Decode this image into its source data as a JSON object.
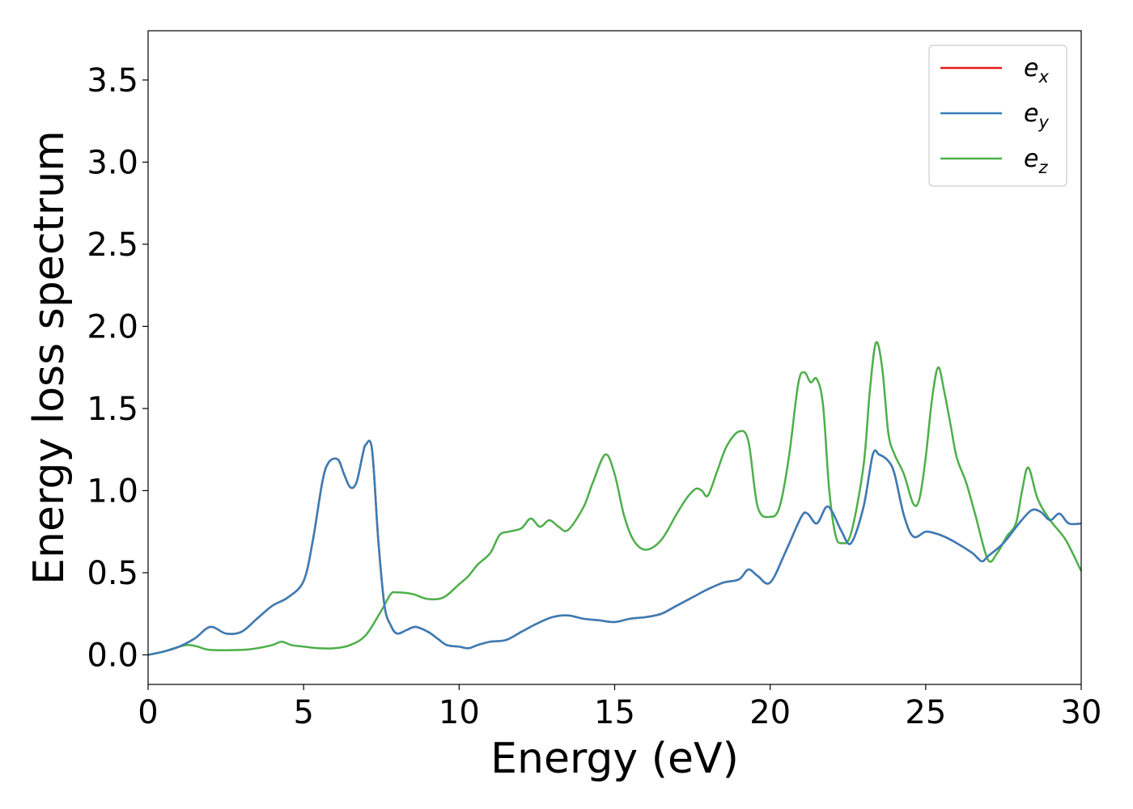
{
  "chart_data": {
    "type": "line",
    "title": "",
    "xlabel": "Energy (eV)",
    "ylabel": "Energy loss spectrum",
    "xlim": [
      0,
      30
    ],
    "ylim": [
      -0.18,
      3.8
    ],
    "xticks": [
      0,
      5,
      10,
      15,
      20,
      25,
      30
    ],
    "xtick_labels": [
      "0",
      "5",
      "10",
      "15",
      "20",
      "25",
      "30"
    ],
    "yticks": [
      0.0,
      0.5,
      1.0,
      1.5,
      2.0,
      2.5,
      3.0,
      3.5
    ],
    "ytick_labels": [
      "0.0",
      "0.5",
      "1.0",
      "1.5",
      "2.0",
      "2.5",
      "3.0",
      "3.5"
    ],
    "grid": false,
    "legend_position": "top-right",
    "series": [
      {
        "name": "e",
        "subscript": "x",
        "color": "#e41a1c",
        "x": [
          0,
          0.5,
          1,
          1.5,
          2,
          2.5,
          3,
          3.5,
          4,
          4.5,
          5,
          5.3,
          5.6,
          5.8,
          6.1,
          6.3,
          6.5,
          6.7,
          6.9,
          7.0,
          7.2,
          7.4,
          7.6,
          7.8,
          8.0,
          8.3,
          8.6,
          9.0,
          9.3,
          9.6,
          10.0,
          10.3,
          10.6,
          11.0,
          11.5,
          12.0,
          12.5,
          13.0,
          13.5,
          14.0,
          14.5,
          15.0,
          15.5,
          16.0,
          16.5,
          17.0,
          17.5,
          18.0,
          18.5,
          19.0,
          19.3,
          19.6,
          20.0,
          20.5,
          21.0,
          21.2,
          21.5,
          21.8,
          22.0,
          22.3,
          22.6,
          23.0,
          23.3,
          23.5,
          23.8,
          24.0,
          24.3,
          24.6,
          25.0,
          25.3,
          25.6,
          26.0,
          26.5,
          26.8,
          27.0,
          27.5,
          28.0,
          28.4,
          28.7,
          29.0,
          29.3,
          29.6,
          30.0
        ],
        "values": [
          0.0,
          0.02,
          0.05,
          0.1,
          0.17,
          0.13,
          0.14,
          0.22,
          0.3,
          0.35,
          0.45,
          0.7,
          1.05,
          1.17,
          1.19,
          1.1,
          1.02,
          1.05,
          1.22,
          1.28,
          1.25,
          0.7,
          0.3,
          0.18,
          0.13,
          0.15,
          0.17,
          0.14,
          0.1,
          0.06,
          0.05,
          0.04,
          0.06,
          0.08,
          0.09,
          0.14,
          0.19,
          0.23,
          0.24,
          0.22,
          0.21,
          0.2,
          0.22,
          0.23,
          0.25,
          0.3,
          0.35,
          0.4,
          0.44,
          0.46,
          0.52,
          0.48,
          0.44,
          0.63,
          0.84,
          0.86,
          0.8,
          0.9,
          0.87,
          0.75,
          0.68,
          0.9,
          1.22,
          1.22,
          1.18,
          1.1,
          0.85,
          0.72,
          0.75,
          0.74,
          0.72,
          0.68,
          0.62,
          0.57,
          0.6,
          0.68,
          0.8,
          0.88,
          0.87,
          0.82,
          0.86,
          0.8,
          0.8
        ]
      },
      {
        "name": "e",
        "subscript": "y",
        "color": "#377eb8",
        "x": [
          0,
          0.5,
          1,
          1.5,
          2,
          2.5,
          3,
          3.5,
          4,
          4.5,
          5,
          5.3,
          5.6,
          5.8,
          6.1,
          6.3,
          6.5,
          6.7,
          6.9,
          7.0,
          7.2,
          7.4,
          7.6,
          7.8,
          8.0,
          8.3,
          8.6,
          9.0,
          9.3,
          9.6,
          10.0,
          10.3,
          10.6,
          11.0,
          11.5,
          12.0,
          12.5,
          13.0,
          13.5,
          14.0,
          14.5,
          15.0,
          15.5,
          16.0,
          16.5,
          17.0,
          17.5,
          18.0,
          18.5,
          19.0,
          19.3,
          19.6,
          20.0,
          20.5,
          21.0,
          21.2,
          21.5,
          21.8,
          22.0,
          22.3,
          22.6,
          23.0,
          23.3,
          23.5,
          23.8,
          24.0,
          24.3,
          24.6,
          25.0,
          25.3,
          25.6,
          26.0,
          26.5,
          26.8,
          27.0,
          27.5,
          28.0,
          28.4,
          28.7,
          29.0,
          29.3,
          29.6,
          30.0
        ],
        "values": [
          0.0,
          0.02,
          0.05,
          0.1,
          0.17,
          0.13,
          0.14,
          0.22,
          0.3,
          0.35,
          0.45,
          0.7,
          1.05,
          1.17,
          1.19,
          1.1,
          1.02,
          1.05,
          1.22,
          1.28,
          1.25,
          0.7,
          0.3,
          0.18,
          0.13,
          0.15,
          0.17,
          0.14,
          0.1,
          0.06,
          0.05,
          0.04,
          0.06,
          0.08,
          0.09,
          0.14,
          0.19,
          0.23,
          0.24,
          0.22,
          0.21,
          0.2,
          0.22,
          0.23,
          0.25,
          0.3,
          0.35,
          0.4,
          0.44,
          0.46,
          0.52,
          0.48,
          0.44,
          0.63,
          0.84,
          0.86,
          0.8,
          0.9,
          0.87,
          0.75,
          0.68,
          0.9,
          1.22,
          1.22,
          1.18,
          1.1,
          0.85,
          0.72,
          0.75,
          0.74,
          0.72,
          0.68,
          0.62,
          0.57,
          0.6,
          0.68,
          0.8,
          0.88,
          0.87,
          0.82,
          0.86,
          0.8,
          0.8
        ]
      },
      {
        "name": "e",
        "subscript": "z",
        "color": "#4daf4a",
        "x": [
          0,
          0.5,
          1,
          1.3,
          1.6,
          2.0,
          3.0,
          3.5,
          4.0,
          4.3,
          4.6,
          5.0,
          5.5,
          6.0,
          6.5,
          7.0,
          7.5,
          7.8,
          8.0,
          8.5,
          9.0,
          9.5,
          10.0,
          10.3,
          10.6,
          11.0,
          11.3,
          11.6,
          12.0,
          12.3,
          12.6,
          12.9,
          13.2,
          13.5,
          14.0,
          14.3,
          14.7,
          15.0,
          15.3,
          15.6,
          16.0,
          16.5,
          17.0,
          17.3,
          17.6,
          17.8,
          18.0,
          18.3,
          18.6,
          19.0,
          19.3,
          19.6,
          20.0,
          20.3,
          20.6,
          20.9,
          21.1,
          21.3,
          21.5,
          21.7,
          21.9,
          22.1,
          22.3,
          22.6,
          23.0,
          23.2,
          23.4,
          23.6,
          23.8,
          24.0,
          24.3,
          24.6,
          24.8,
          25.0,
          25.2,
          25.4,
          25.6,
          25.8,
          26.0,
          26.3,
          26.6,
          27.0,
          27.3,
          27.6,
          27.9,
          28.1,
          28.3,
          28.6,
          29.0,
          29.5,
          30.0
        ],
        "values": [
          0.0,
          0.02,
          0.05,
          0.06,
          0.05,
          0.03,
          0.03,
          0.04,
          0.06,
          0.08,
          0.06,
          0.05,
          0.04,
          0.04,
          0.06,
          0.12,
          0.27,
          0.37,
          0.38,
          0.37,
          0.34,
          0.35,
          0.43,
          0.48,
          0.55,
          0.62,
          0.73,
          0.75,
          0.77,
          0.83,
          0.78,
          0.82,
          0.78,
          0.76,
          0.9,
          1.05,
          1.22,
          1.1,
          0.85,
          0.7,
          0.64,
          0.7,
          0.86,
          0.95,
          1.01,
          1.0,
          0.97,
          1.12,
          1.27,
          1.36,
          1.3,
          0.9,
          0.84,
          0.9,
          1.2,
          1.65,
          1.72,
          1.66,
          1.68,
          1.52,
          1.0,
          0.73,
          0.68,
          0.74,
          1.15,
          1.6,
          1.9,
          1.75,
          1.35,
          1.22,
          1.1,
          0.92,
          0.95,
          1.2,
          1.55,
          1.75,
          1.6,
          1.4,
          1.2,
          1.05,
          0.85,
          0.58,
          0.62,
          0.72,
          0.8,
          1.0,
          1.14,
          0.95,
          0.82,
          0.7,
          0.51
        ]
      }
    ]
  }
}
